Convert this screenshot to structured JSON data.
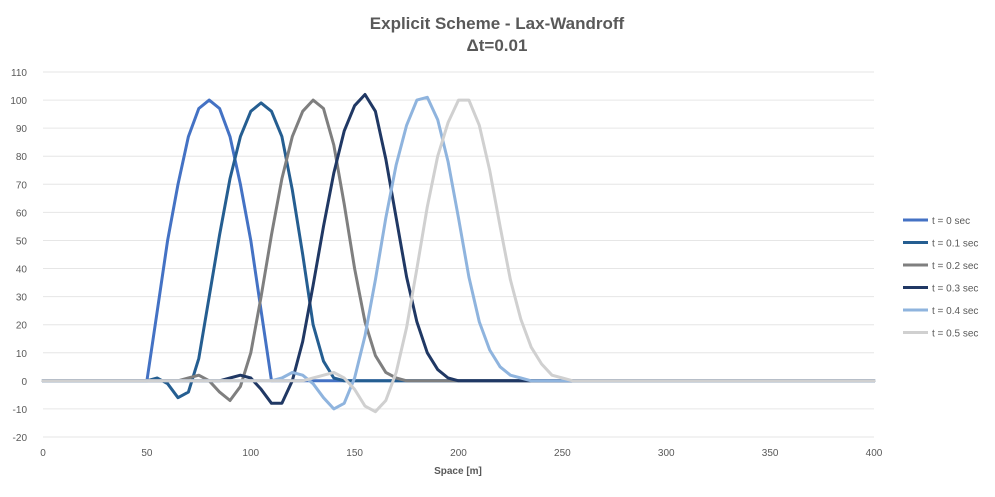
{
  "chart_data": {
    "type": "line",
    "title": "Explicit Scheme - Lax-Wandroff",
    "subtitle": "Δt=0.01",
    "xlabel": "Space [m]",
    "ylabel": "",
    "xlim": [
      0,
      400
    ],
    "ylim": [
      -20,
      110
    ],
    "x_ticks": [
      0,
      50,
      100,
      150,
      200,
      250,
      300,
      350,
      400
    ],
    "y_ticks": [
      -20,
      -10,
      0,
      10,
      20,
      30,
      40,
      50,
      60,
      70,
      80,
      90,
      100,
      110
    ],
    "grid": true,
    "legend_position": "right",
    "x": [
      0,
      5,
      10,
      15,
      20,
      25,
      30,
      35,
      40,
      45,
      50,
      55,
      60,
      65,
      70,
      75,
      80,
      85,
      90,
      95,
      100,
      105,
      110,
      115,
      120,
      125,
      130,
      135,
      140,
      145,
      150,
      155,
      160,
      165,
      170,
      175,
      180,
      185,
      190,
      195,
      200,
      205,
      210,
      215,
      220,
      225,
      230,
      235,
      240,
      245,
      250,
      255,
      260,
      265,
      270,
      275,
      280,
      285,
      290,
      295,
      300,
      305,
      310,
      315,
      320,
      325,
      330,
      335,
      340,
      345,
      350,
      355,
      360,
      365,
      370,
      375,
      380,
      385,
      390,
      395,
      400
    ],
    "series": [
      {
        "name": "t = 0 sec",
        "color": "#4472c4",
        "values": [
          0,
          0,
          0,
          0,
          0,
          0,
          0,
          0,
          0,
          0,
          0,
          25,
          50,
          70,
          87,
          97,
          100,
          97,
          87,
          70,
          50,
          25,
          0,
          0,
          0,
          0,
          0,
          0,
          0,
          0,
          0,
          0,
          0,
          0,
          0,
          0,
          0,
          0,
          0,
          0,
          0,
          0,
          0,
          0,
          0,
          0,
          0,
          0,
          0,
          0,
          0,
          0,
          0,
          0,
          0,
          0,
          0,
          0,
          0,
          0,
          0,
          0,
          0,
          0,
          0,
          0,
          0,
          0,
          0,
          0,
          0,
          0,
          0,
          0,
          0,
          0,
          0,
          0,
          0,
          0,
          0
        ]
      },
      {
        "name": "t = 0.1 sec",
        "color": "#255e91",
        "values": [
          0,
          0,
          0,
          0,
          0,
          0,
          0,
          0,
          0,
          0,
          0,
          1,
          -1,
          -6,
          -4,
          8,
          30,
          52,
          72,
          87,
          96,
          99,
          96,
          87,
          68,
          45,
          20,
          7,
          1,
          0,
          0,
          0,
          0,
          0,
          0,
          0,
          0,
          0,
          0,
          0,
          0,
          0,
          0,
          0,
          0,
          0,
          0,
          0,
          0,
          0,
          0,
          0,
          0,
          0,
          0,
          0,
          0,
          0,
          0,
          0,
          0,
          0,
          0,
          0,
          0,
          0,
          0,
          0,
          0,
          0,
          0,
          0,
          0,
          0,
          0,
          0,
          0,
          0,
          0,
          0,
          0
        ]
      },
      {
        "name": "t = 0.2 sec",
        "color": "#7f7f7f",
        "values": [
          0,
          0,
          0,
          0,
          0,
          0,
          0,
          0,
          0,
          0,
          0,
          0,
          0,
          0,
          1,
          2,
          0,
          -4,
          -7,
          -2,
          10,
          30,
          52,
          72,
          87,
          96,
          100,
          97,
          84,
          63,
          40,
          21,
          9,
          3,
          1,
          0,
          0,
          0,
          0,
          0,
          0,
          0,
          0,
          0,
          0,
          0,
          0,
          0,
          0,
          0,
          0,
          0,
          0,
          0,
          0,
          0,
          0,
          0,
          0,
          0,
          0,
          0,
          0,
          0,
          0,
          0,
          0,
          0,
          0,
          0,
          0,
          0,
          0,
          0,
          0,
          0,
          0,
          0,
          0,
          0,
          0
        ]
      },
      {
        "name": "t = 0.3 sec",
        "color": "#203864",
        "values": [
          0,
          0,
          0,
          0,
          0,
          0,
          0,
          0,
          0,
          0,
          0,
          0,
          0,
          0,
          0,
          0,
          0,
          0,
          1,
          2,
          1,
          -3,
          -8,
          -8,
          0,
          14,
          34,
          55,
          74,
          89,
          98,
          102,
          96,
          79,
          58,
          37,
          21,
          10,
          4,
          1,
          0,
          0,
          0,
          0,
          0,
          0,
          0,
          0,
          0,
          0,
          0,
          0,
          0,
          0,
          0,
          0,
          0,
          0,
          0,
          0,
          0,
          0,
          0,
          0,
          0,
          0,
          0,
          0,
          0,
          0,
          0,
          0,
          0,
          0,
          0,
          0,
          0,
          0,
          0,
          0,
          0
        ]
      },
      {
        "name": "t = 0.4 sec",
        "color": "#8fb4de",
        "values": [
          0,
          0,
          0,
          0,
          0,
          0,
          0,
          0,
          0,
          0,
          0,
          0,
          0,
          0,
          0,
          0,
          0,
          0,
          0,
          0,
          0,
          0,
          0,
          1,
          3,
          2,
          -1,
          -6,
          -10,
          -8,
          1,
          16,
          36,
          58,
          77,
          91,
          100,
          101,
          93,
          78,
          58,
          37,
          21,
          11,
          5,
          2,
          1,
          0,
          0,
          0,
          0,
          0,
          0,
          0,
          0,
          0,
          0,
          0,
          0,
          0,
          0,
          0,
          0,
          0,
          0,
          0,
          0,
          0,
          0,
          0,
          0,
          0,
          0,
          0,
          0,
          0,
          0,
          0,
          0,
          0,
          0
        ]
      },
      {
        "name": "t = 0.5 sec",
        "color": "#d0d0d0",
        "values": [
          0,
          0,
          0,
          0,
          0,
          0,
          0,
          0,
          0,
          0,
          0,
          0,
          0,
          0,
          0,
          0,
          0,
          0,
          0,
          0,
          0,
          0,
          0,
          0,
          0,
          0,
          1,
          2,
          3,
          1,
          -3,
          -9,
          -11,
          -7,
          3,
          19,
          40,
          62,
          80,
          92,
          100,
          100,
          91,
          75,
          55,
          36,
          22,
          12,
          6,
          2,
          1,
          0,
          0,
          0,
          0,
          0,
          0,
          0,
          0,
          0,
          0,
          0,
          0,
          0,
          0,
          0,
          0,
          0,
          0,
          0,
          0,
          0,
          0,
          0,
          0,
          0,
          0,
          0,
          0,
          0,
          0
        ]
      }
    ]
  }
}
